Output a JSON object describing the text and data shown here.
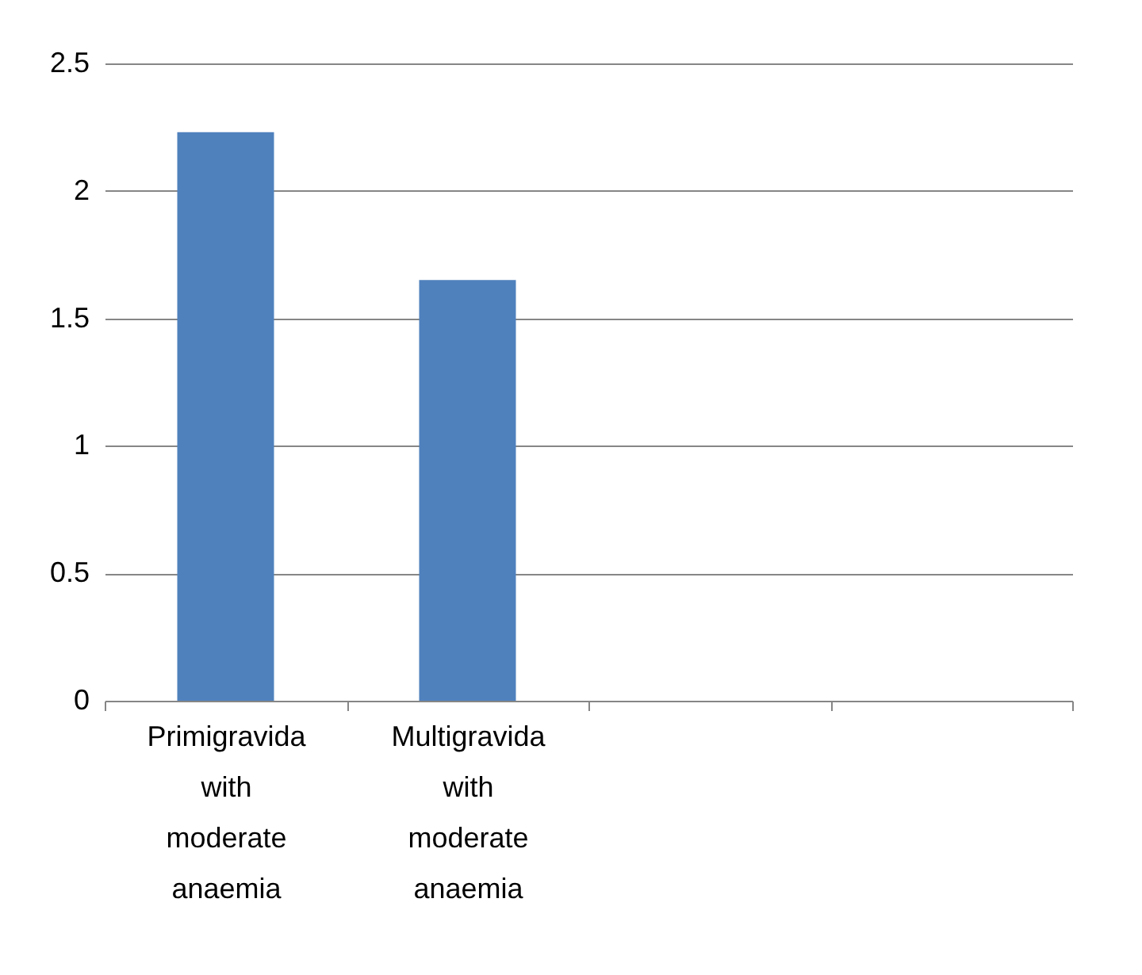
{
  "chart_data": {
    "type": "bar",
    "categories": [
      "Primigravida with moderate anaemia",
      "Multigravida with moderate anaemia",
      null,
      null
    ],
    "values": [
      2.23,
      1.65,
      null,
      null
    ],
    "color": "#4f81bd",
    "ylim": [
      0,
      2.5
    ],
    "yticks": [
      0,
      0.5,
      1,
      1.5,
      2,
      2.5
    ],
    "grid": "y"
  }
}
